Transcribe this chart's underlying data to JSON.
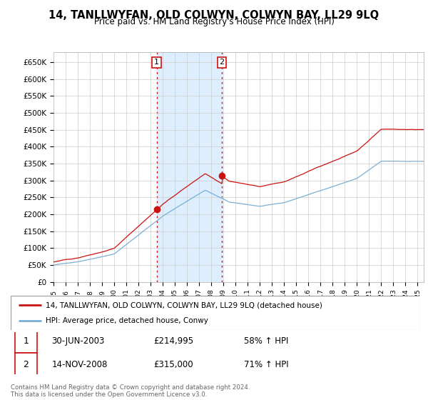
{
  "title": "14, TANLLWYFAN, OLD COLWYN, COLWYN BAY, LL29 9LQ",
  "subtitle": "Price paid vs. HM Land Registry's House Price Index (HPI)",
  "ylabel_ticks": [
    "£0",
    "£50K",
    "£100K",
    "£150K",
    "£200K",
    "£250K",
    "£300K",
    "£350K",
    "£400K",
    "£450K",
    "£500K",
    "£550K",
    "£600K",
    "£650K"
  ],
  "ylim": [
    0,
    680000
  ],
  "xlim_start": 1995.0,
  "xlim_end": 2025.5,
  "sale1_date": 2003.5,
  "sale1_price": 214995,
  "sale1_label": "1",
  "sale2_date": 2008.875,
  "sale2_price": 315000,
  "sale2_label": "2",
  "hpi_color": "#7bafd4",
  "price_color": "#cc1111",
  "shading_color": "#ddeeff",
  "legend_line1": "14, TANLLWYFAN, OLD COLWYN, COLWYN BAY, LL29 9LQ (detached house)",
  "legend_line2": "HPI: Average price, detached house, Conwy",
  "table_row1_date": "30-JUN-2003",
  "table_row1_price": "£214,995",
  "table_row1_hpi": "58% ↑ HPI",
  "table_row2_date": "14-NOV-2008",
  "table_row2_price": "£315,000",
  "table_row2_hpi": "71% ↑ HPI",
  "footer": "Contains HM Land Registry data © Crown copyright and database right 2024.\nThis data is licensed under the Open Government Licence v3.0."
}
